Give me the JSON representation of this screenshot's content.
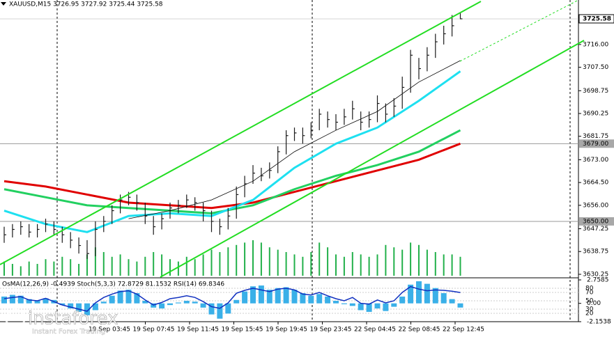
{
  "chart_data": {
    "type": "ohlc",
    "title": "XAUUSD,M15  3726.95 3727.92 3725.44 3725.58",
    "indicator_title": "OsMA(12,26,9) -0.4939  Stoch(5,3,3) 72.8729 81.1532  RSI(14) 69.8346",
    "watermark": "instaforex",
    "watermark_sub": "Instant Forex Trading",
    "time_labels": [
      "19 Sep 03:45",
      "19 Sep 07:45",
      "19 Sep 11:45",
      "19 Sep 15:45",
      "19 Sep 19:45",
      "19 Sep 23:45",
      "22 Sep 04:45",
      "22 Sep 08:45",
      "22 Sep 12:45"
    ],
    "ylim": [
      3629.2,
      3732.6
    ],
    "yticks": [
      {
        "value": 3716,
        "label": "3716.00"
      },
      {
        "value": 3707.5,
        "label": "3707.50"
      },
      {
        "value": 3698.75,
        "label": "3698.75"
      },
      {
        "value": 3690.25,
        "label": "3690.25"
      },
      {
        "value": 3681.75,
        "label": "3681.75"
      },
      {
        "value": 3673,
        "label": "3673.00"
      },
      {
        "value": 3664.5,
        "label": "3664.50"
      },
      {
        "value": 3656,
        "label": "3656.00"
      },
      {
        "value": 3647.25,
        "label": "3647.25"
      },
      {
        "value": 3638.75,
        "label": "3638.75"
      },
      {
        "value": 3630.25,
        "label": "3630.25"
      }
    ],
    "current_price": {
      "value": 3725.58,
      "label": "3725.58"
    },
    "levels": [
      {
        "value": 3679,
        "label": "3679.00"
      },
      {
        "value": 3650,
        "label": "3650.00"
      }
    ],
    "high": [
      3648,
      3649,
      3650,
      3649,
      3649,
      3651,
      3650,
      3648,
      3646,
      3644,
      3643,
      3650,
      3652,
      3656,
      3660,
      3661,
      3660,
      3657,
      3652,
      3653,
      3657,
      3658,
      3660,
      3659,
      3657,
      3654,
      3651,
      3655,
      3663,
      3667,
      3671,
      3670,
      3672,
      3678,
      3684,
      3685,
      3685,
      3687,
      3692,
      3691,
      3690,
      3692,
      3695,
      3691,
      3691,
      3697,
      3694,
      3696,
      3704,
      3714,
      3711,
      3715,
      3720,
      3723,
      3727,
      3727.92
    ],
    "low": [
      3642,
      3644,
      3645,
      3644,
      3644,
      3646,
      3645,
      3642,
      3640,
      3638,
      3636,
      3637,
      3646,
      3649,
      3653,
      3656,
      3654,
      3649,
      3645,
      3647,
      3651,
      3653,
      3655,
      3654,
      3650,
      3646,
      3645,
      3647,
      3651,
      3659,
      3664,
      3665,
      3666,
      3668,
      3675,
      3680,
      3679,
      3681,
      3684,
      3685,
      3684,
      3686,
      3688,
      3684,
      3685,
      3687,
      3687,
      3689,
      3692,
      3698,
      3703,
      3706,
      3711,
      3716,
      3719,
      3725.44
    ],
    "close": [
      3645,
      3647,
      3648,
      3646,
      3647,
      3649,
      3647,
      3645,
      3643,
      3641,
      3638,
      3647,
      3650,
      3654,
      3658,
      3659,
      3657,
      3652,
      3648,
      3651,
      3655,
      3656,
      3658,
      3657,
      3654,
      3650,
      3648,
      3652,
      3660,
      3664,
      3668,
      3667,
      3669,
      3676,
      3682,
      3683,
      3682,
      3684,
      3690,
      3688,
      3687,
      3689,
      3692,
      3687,
      3688,
      3694,
      3690,
      3693,
      3700,
      3712,
      3707,
      3712,
      3717,
      3720,
      3723,
      3725.58
    ],
    "bar_color": "#1a1a1a",
    "ma_x": [
      0,
      5,
      10,
      15,
      20,
      25,
      30,
      35,
      40,
      45,
      50,
      55
    ],
    "ma": [
      {
        "color": "#e00000",
        "width": 3,
        "values": [
          3665,
          3663,
          3660,
          3657,
          3656,
          3655,
          3657,
          3661,
          3665,
          3669,
          3673,
          3679
        ]
      },
      {
        "color": "#22d060",
        "width": 3,
        "values": [
          3662,
          3659,
          3656,
          3655,
          3654,
          3653,
          3656,
          3662,
          3667,
          3671,
          3676,
          3684
        ]
      },
      {
        "color": "#1ee0f0",
        "width": 3,
        "values": [
          3654,
          3649,
          3646,
          3652,
          3653,
          3652,
          3658,
          3670,
          3679,
          3685,
          3695,
          3706
        ]
      },
      {
        "color": "#000000",
        "width": 0.8,
        "values": [
          null,
          null,
          null,
          3651,
          3654,
          3658,
          3665,
          3676,
          3684,
          3691,
          3702,
          3710
        ]
      }
    ],
    "volume": {
      "color": "#22b04a",
      "values": [
        6,
        5,
        4,
        6,
        5,
        7,
        6,
        8,
        7,
        5,
        9,
        12,
        10,
        8,
        9,
        7,
        6,
        8,
        10,
        9,
        7,
        6,
        8,
        7,
        9,
        11,
        10,
        12,
        13,
        14,
        15,
        14,
        12,
        11,
        10,
        9,
        8,
        10,
        14,
        12,
        9,
        8,
        10,
        9,
        8,
        9,
        13,
        12,
        11,
        14,
        13,
        11,
        10,
        9,
        9,
        8
      ]
    },
    "osma": {
      "color": "#3ab0e8",
      "ylim": [
        -2.1538,
        2.7585
      ],
      "yticks": [
        2.7585,
        {
          "value": 0,
          "label": "0.00"
        },
        -2.1538
      ],
      "values": [
        0.8,
        1.0,
        0.9,
        0.5,
        0.3,
        0.6,
        0.4,
        -0.2,
        -0.6,
        -1.0,
        -1.4,
        -0.8,
        0.2,
        0.9,
        1.5,
        1.6,
        1.2,
        0.3,
        -0.5,
        -0.6,
        -0.2,
        0.1,
        0.3,
        0.2,
        -0.5,
        -1.3,
        -1.8,
        -1.2,
        0.4,
        1.4,
        2.0,
        2.1,
        1.6,
        1.8,
        1.9,
        1.6,
        1.2,
        0.9,
        1.1,
        0.8,
        0.3,
        -0.1,
        -0.3,
        -0.8,
        -1.0,
        -0.6,
        -0.9,
        -0.4,
        0.8,
        2.2,
        2.6,
        2.3,
        1.8,
        1.2,
        0.5,
        -0.4939
      ]
    },
    "rsi": {
      "color": "#1030c0",
      "ylim": [
        0,
        100
      ],
      "yticks": [
        80,
        70,
        50,
        30,
        20
      ],
      "values": [
        55,
        58,
        60,
        52,
        50,
        56,
        48,
        40,
        35,
        30,
        25,
        45,
        58,
        66,
        72,
        74,
        66,
        52,
        40,
        46,
        55,
        58,
        62,
        58,
        48,
        36,
        32,
        45,
        68,
        75,
        80,
        76,
        72,
        78,
        80,
        76,
        66,
        64,
        70,
        62,
        55,
        50,
        58,
        44,
        42,
        52,
        45,
        50,
        70,
        84,
        78,
        74,
        76,
        75,
        73,
        69.8346
      ]
    }
  }
}
